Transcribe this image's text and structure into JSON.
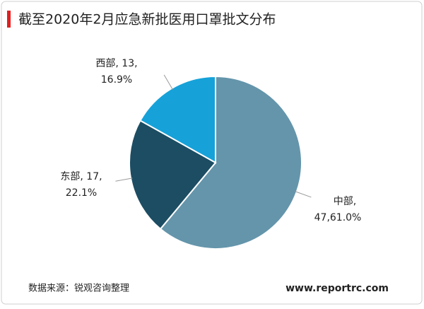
{
  "chart_data": {
    "type": "pie",
    "title": "截至2020年2月应急新批医用口罩批文分布",
    "values": [
      47,
      17,
      13
    ],
    "value_labels": [
      [
        "中部,",
        "47,61.0%"
      ],
      [
        "东部, 17,",
        "22.1%"
      ],
      [
        "西部, 13,",
        "16.9%"
      ]
    ],
    "colors": [
      "#6495ab",
      "#1c4d63",
      "#16a2d9"
    ]
  },
  "footer": {
    "source": "数据来源：锐观咨询整理",
    "website": "www.reportrc.com"
  }
}
